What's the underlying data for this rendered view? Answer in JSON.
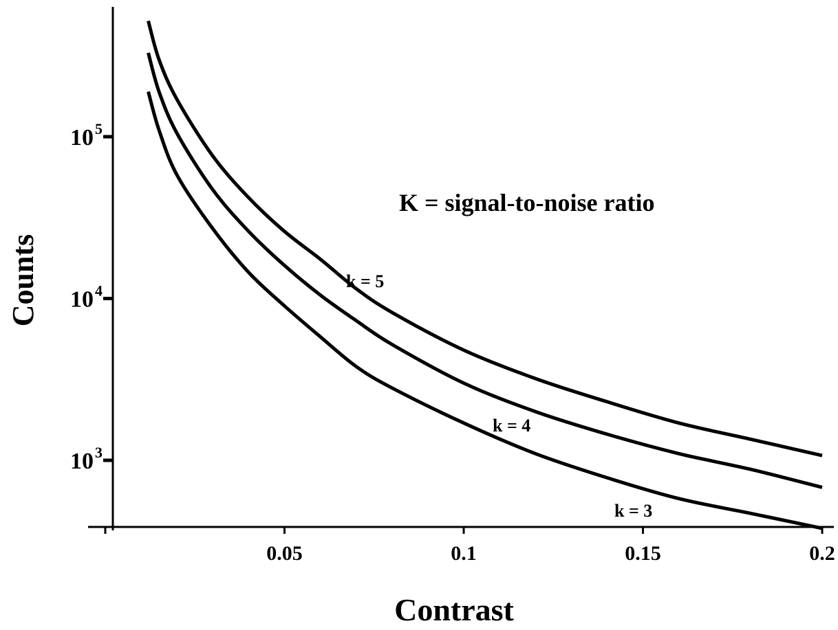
{
  "chart_data": {
    "type": "line",
    "title": "",
    "xlabel": "Contrast",
    "ylabel": "Counts",
    "x_scale": "linear",
    "y_scale": "log",
    "xlim": [
      0.0,
      0.2
    ],
    "ylim": [
      400,
      800000
    ],
    "grid": false,
    "x_ticks": [
      {
        "value": 0.05,
        "label": "0.05"
      },
      {
        "value": 0.1,
        "label": "0.1"
      },
      {
        "value": 0.15,
        "label": "0.15"
      },
      {
        "value": 0.2,
        "label": "0.2"
      }
    ],
    "y_ticks": [
      {
        "value": 1000,
        "base": "10",
        "exp": "3"
      },
      {
        "value": 10000,
        "base": "10",
        "exp": "4"
      },
      {
        "value": 100000,
        "base": "10",
        "exp": "5"
      }
    ],
    "annotation": "K = signal-to-noise ratio",
    "series": [
      {
        "name": "k = 5",
        "x": [
          0.012,
          0.015,
          0.02,
          0.03,
          0.04,
          0.05,
          0.06,
          0.07,
          0.08,
          0.1,
          0.12,
          0.14,
          0.16,
          0.18,
          0.2
        ],
        "y": [
          520000,
          300000,
          170000,
          76000,
          42000,
          26000,
          17500,
          11500,
          8200,
          4800,
          3200,
          2300,
          1700,
          1350,
          1070
        ]
      },
      {
        "name": "k = 4",
        "x": [
          0.012,
          0.015,
          0.02,
          0.03,
          0.04,
          0.05,
          0.06,
          0.07,
          0.08,
          0.1,
          0.12,
          0.14,
          0.16,
          0.18,
          0.2
        ],
        "y": [
          330000,
          190000,
          105000,
          47000,
          26000,
          16000,
          10500,
          7300,
          5200,
          3000,
          2000,
          1450,
          1100,
          880,
          680
        ]
      },
      {
        "name": "k = 3",
        "x": [
          0.012,
          0.015,
          0.02,
          0.03,
          0.04,
          0.05,
          0.06,
          0.07,
          0.08,
          0.1,
          0.12,
          0.14,
          0.16,
          0.18,
          0.2
        ],
        "y": [
          190000,
          110000,
          58000,
          27000,
          14500,
          9000,
          5800,
          3800,
          2800,
          1700,
          1100,
          780,
          580,
          470,
          380
        ]
      }
    ]
  }
}
